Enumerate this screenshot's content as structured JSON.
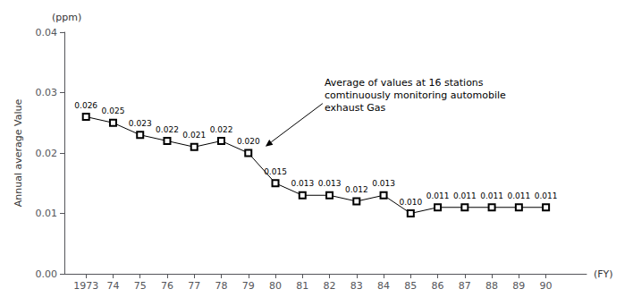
{
  "chart_data": {
    "type": "line",
    "x": [
      1973,
      1974,
      1975,
      1976,
      1977,
      1978,
      1979,
      1980,
      1981,
      1982,
      1983,
      1984,
      1985,
      1986,
      1987,
      1988,
      1989,
      1990
    ],
    "values": [
      0.026,
      0.025,
      0.023,
      0.022,
      0.021,
      0.022,
      0.02,
      0.015,
      0.013,
      0.013,
      0.012,
      0.013,
      0.01,
      0.011,
      0.011,
      0.011,
      0.011,
      0.011
    ],
    "value_labels": [
      "0.026",
      "0.025",
      "0.023",
      "0.022",
      "0.021",
      "0.022",
      "0.020",
      "0.015",
      "0.013",
      "0.013",
      "0.012",
      "0.013",
      "0.010",
      "0.011",
      "0.011",
      "0.011",
      "0.011",
      "0.011"
    ],
    "data_labels": true,
    "color": "#000000",
    "marker": "square",
    "xlabel": "(FY)",
    "ylabel": "Annual average Value",
    "xlim": [
      1972.2,
      1991.5
    ],
    "xticks": [
      1973,
      {
        "value": 1974,
        "label": "74"
      },
      {
        "value": 1975,
        "label": "75"
      },
      {
        "value": 1976,
        "label": "76"
      },
      {
        "value": 1977,
        "label": "77"
      },
      {
        "value": 1978,
        "label": "78"
      },
      {
        "value": 1979,
        "label": "79"
      },
      {
        "value": 1980,
        "label": "80"
      },
      {
        "value": 1981,
        "label": "81"
      },
      {
        "value": 1982,
        "label": "82"
      },
      {
        "value": 1983,
        "label": "83"
      },
      {
        "value": 1984,
        "label": "84"
      },
      {
        "value": 1985,
        "label": "85"
      },
      {
        "value": 1986,
        "label": "86"
      },
      {
        "value": 1987,
        "label": "87"
      },
      {
        "value": 1988,
        "label": "88"
      },
      {
        "value": 1989,
        "label": "89"
      },
      {
        "value": 1990,
        "label": "90"
      }
    ],
    "ylim": [
      0,
      0.04
    ],
    "yticks": [
      {
        "value": 0,
        "label": "0.00"
      },
      {
        "value": 0.01,
        "label": "0.01"
      },
      {
        "value": 0.02,
        "label": "0.02"
      },
      {
        "value": 0.03,
        "label": "0.03"
      },
      {
        "value": 0.04,
        "label": "0.04"
      }
    ],
    "grid": false,
    "annotations": [
      {
        "text": "Average of values at 16 stations\ncomtinuously monitoring automobile\nexhaust Gas",
        "x": 1979.5,
        "y": 0.0205
      },
      {
        "text": "(ppm)"
      }
    ]
  }
}
